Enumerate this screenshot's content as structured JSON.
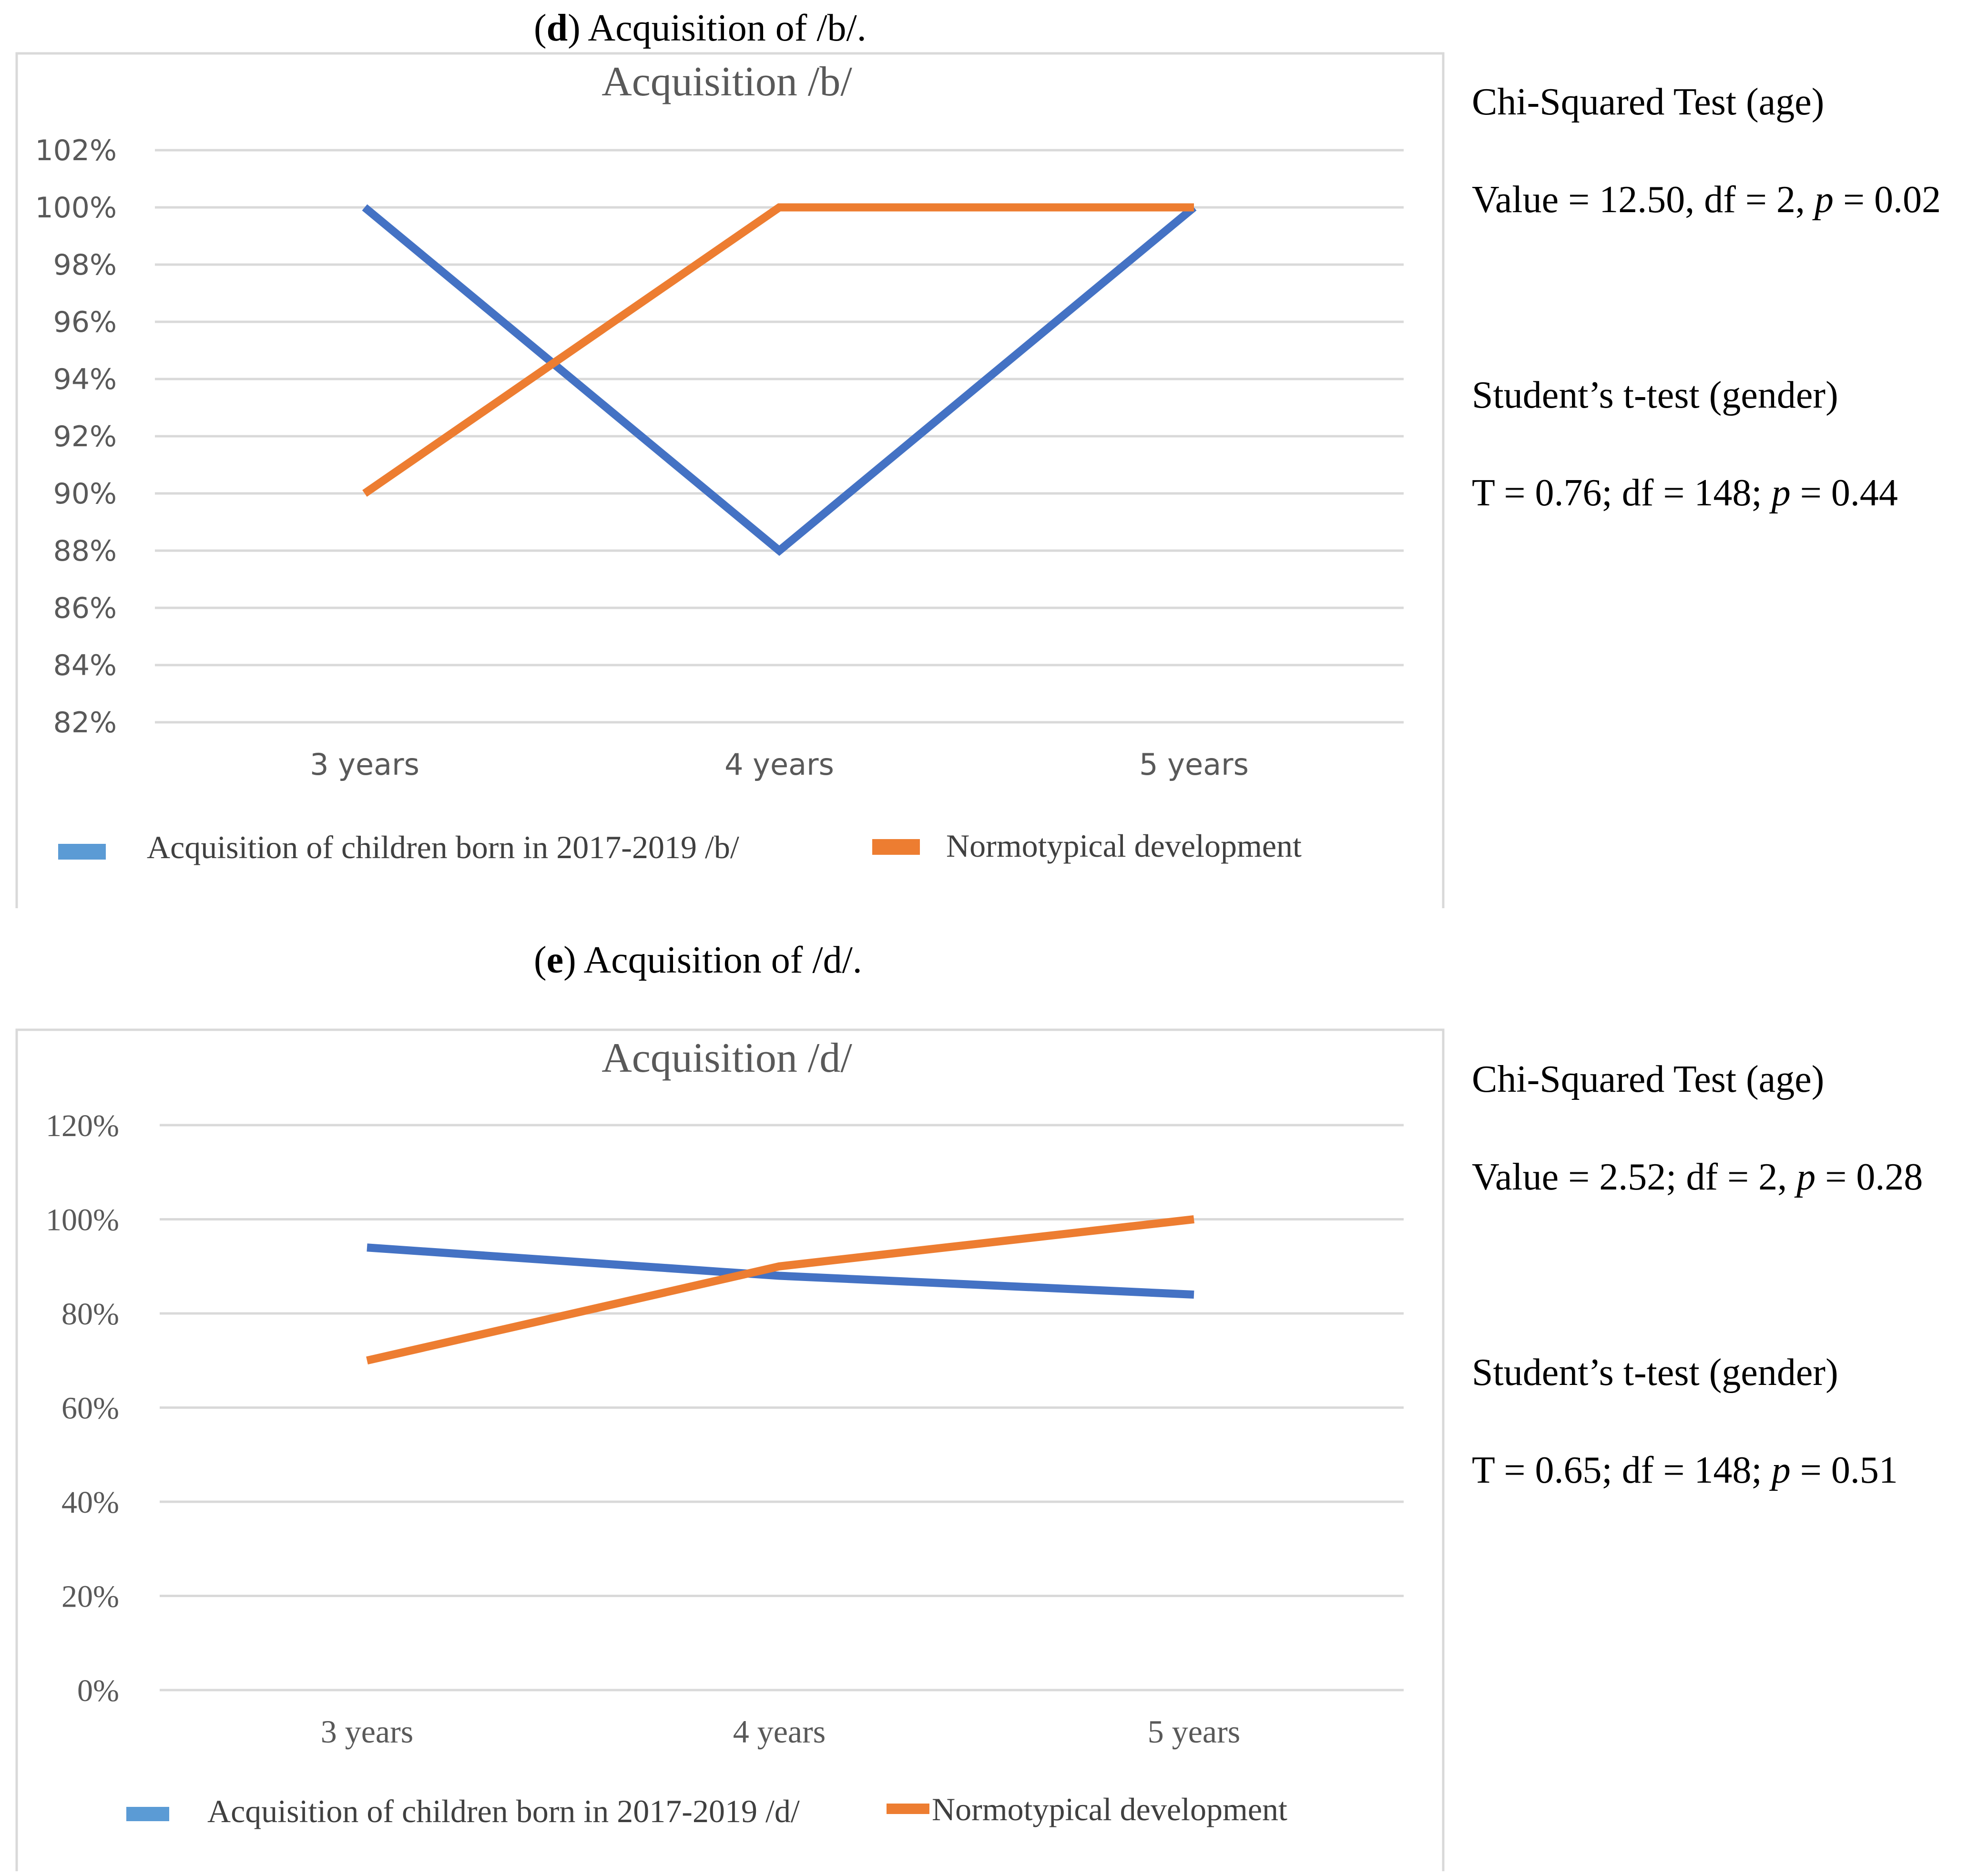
{
  "panels": [
    {
      "caption_letter": "d",
      "caption_text": ") Acquisition of /b/.",
      "stats": {
        "chi_title": "Chi-Squared Test (age)",
        "chi_value_prefix": "Value = 12.50, df = 2, ",
        "chi_p": "p",
        "chi_value_suffix": " = 0.02",
        "t_title": "Student’s t-test (gender)",
        "t_value_prefix": "T = 0.76; df = 148; ",
        "t_p": "p",
        "t_value_suffix": " = 0.44"
      },
      "legend": [
        "Acquisition of children born in 2017-2019 /b/",
        "Normotypical development"
      ]
    },
    {
      "caption_letter": "e",
      "caption_text": ") Acquisition of /d/.",
      "stats": {
        "chi_title": "Chi-Squared Test (age)",
        "chi_value_prefix": "Value = 2.52; df = 2, ",
        "chi_p": "p",
        "chi_value_suffix": " = 0.28",
        "t_title": "Student’s t-test (gender)",
        "t_value_prefix": "T = 0.65; df = 148; ",
        "t_p": "p",
        "t_value_suffix": " = 0.51"
      },
      "legend": [
        "Acquisition of children born in 2017-2019 /d/",
        "Normotypical development"
      ]
    }
  ],
  "chart_data": [
    {
      "type": "line",
      "title": "Acquisition /b/",
      "categories": [
        "3 years",
        "4 years",
        "5 years"
      ],
      "series": [
        {
          "name": "Acquisition of children born in 2017-2019 /b/",
          "values": [
            100,
            88,
            100
          ],
          "color": "#4472C4"
        },
        {
          "name": "Normotypical development",
          "values": [
            90,
            100,
            100
          ],
          "color": "#ED7D31"
        }
      ],
      "yticks": [
        "102%",
        "100%",
        "98%",
        "96%",
        "94%",
        "92%",
        "90%",
        "88%",
        "86%",
        "84%",
        "82%"
      ],
      "ylim": [
        82,
        102
      ],
      "xlabel": "",
      "ylabel": "",
      "grid": true,
      "legend_position": "bottom"
    },
    {
      "type": "line",
      "title": "Acquisition /d/",
      "categories": [
        "3 years",
        "4 years",
        "5 years"
      ],
      "series": [
        {
          "name": "Acquisition of children born in 2017-2019 /d/",
          "values": [
            94,
            88,
            84
          ],
          "color": "#4472C4"
        },
        {
          "name": "Normotypical development",
          "values": [
            70,
            90,
            100
          ],
          "color": "#ED7D31"
        }
      ],
      "yticks": [
        "120%",
        "100%",
        "80%",
        "60%",
        "40%",
        "20%",
        "0%"
      ],
      "ylim": [
        0,
        120
      ],
      "xlabel": "",
      "ylabel": "",
      "grid": true,
      "legend_position": "bottom"
    }
  ]
}
